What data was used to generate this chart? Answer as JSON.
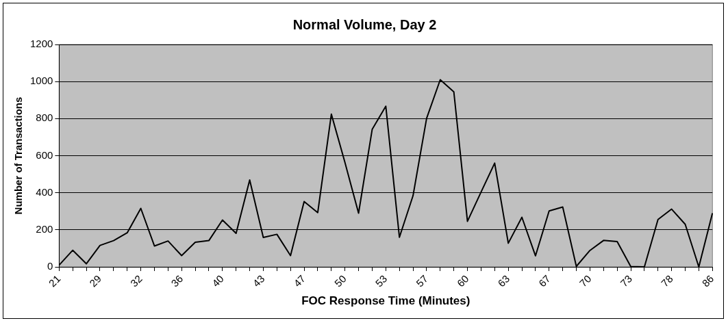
{
  "chart_data": {
    "type": "line",
    "title": "Normal Volume, Day 2",
    "xlabel": "FOC Response Time (Minutes)",
    "ylabel": "Number of Transactions",
    "categories": [
      "21",
      null,
      null,
      "29",
      null,
      null,
      "32",
      null,
      null,
      "36",
      null,
      null,
      "40",
      null,
      null,
      "43",
      null,
      null,
      "47",
      null,
      null,
      "50",
      null,
      null,
      "53",
      null,
      null,
      "57",
      null,
      null,
      "60",
      null,
      null,
      "63",
      null,
      null,
      "67",
      null,
      null,
      "70",
      null,
      null,
      "73",
      null,
      null,
      "78",
      null,
      null,
      "86"
    ],
    "series": [
      {
        "color": "#000000",
        "values": [
          10,
          90,
          17,
          116,
          142,
          184,
          316,
          113,
          140,
          61,
          133,
          142,
          253,
          181,
          469,
          159,
          176,
          61,
          353,
          293,
          824,
          563,
          290,
          742,
          867,
          160,
          384,
          802,
          1010,
          944,
          246,
          404,
          560,
          128,
          268,
          60,
          302,
          323,
          3,
          89,
          143,
          137,
          2,
          0,
          256,
          312,
          230,
          0,
          290
        ]
      }
    ],
    "ylim": [
      0,
      1200
    ],
    "yticks": [
      0,
      200,
      400,
      600,
      800,
      1000,
      1200
    ],
    "grid": "y",
    "legend": false,
    "marker": "none",
    "line_style": "solid"
  }
}
